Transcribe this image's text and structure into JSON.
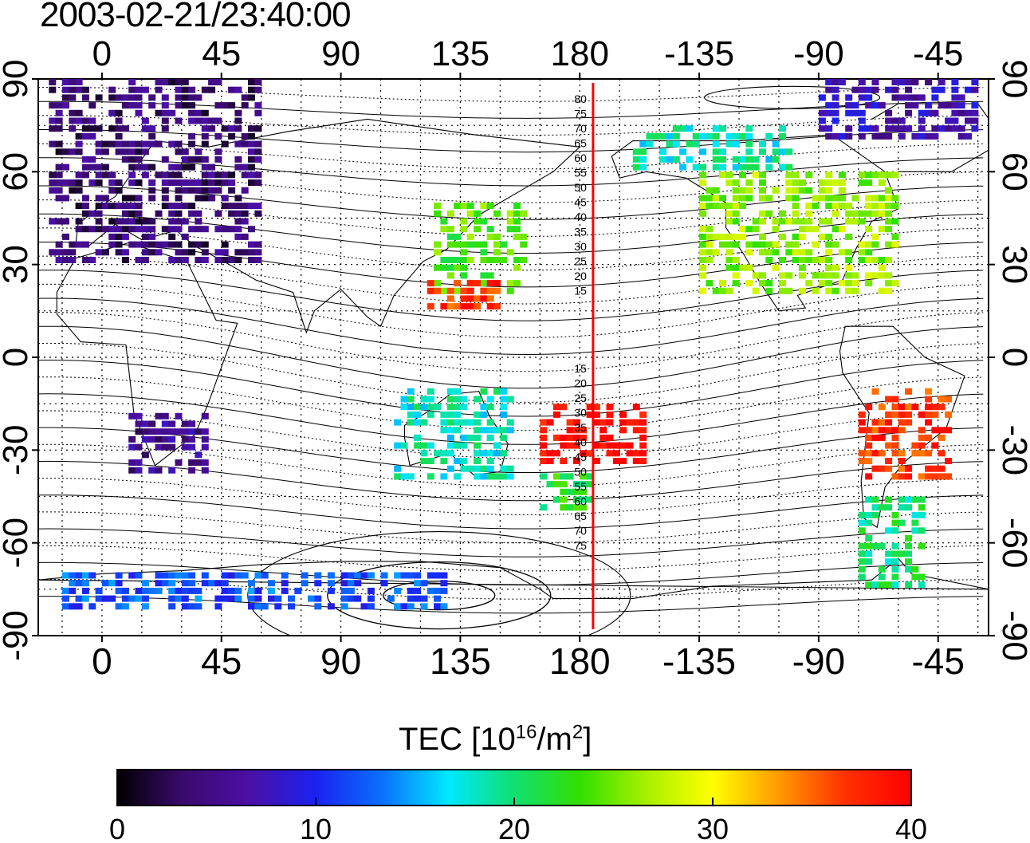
{
  "title": "2003-02-21/23:40:00",
  "map": {
    "top_lon_ticks": [
      "0",
      "45",
      "90",
      "135",
      "180",
      "-135",
      "-90",
      "-45"
    ],
    "bottom_lon_ticks": [
      "0",
      "45",
      "90",
      "135",
      "180",
      "-135",
      "-90",
      "-45"
    ],
    "lat_ticks": [
      "90",
      "60",
      "30",
      "0",
      "-30",
      "-60",
      "-90"
    ],
    "lon_values": [
      0,
      45,
      90,
      135,
      180,
      225,
      270,
      315
    ],
    "lat_values": [
      90,
      60,
      30,
      0,
      -30,
      -60,
      -90
    ],
    "lon_range": [
      -24,
      334
    ],
    "lat_range": [
      -90,
      90
    ],
    "terminator_lon": 185,
    "terminator_color": "#ff0000",
    "contour_labels_north": [
      "80",
      "75",
      "70",
      "65",
      "60",
      "55",
      "50",
      "45",
      "40",
      "35",
      "30",
      "25",
      "20",
      "15"
    ],
    "contour_labels_south": [
      "15",
      "20",
      "25",
      "30",
      "35",
      "40",
      "45",
      "50",
      "55",
      "60",
      "65",
      "70",
      "75"
    ]
  },
  "colorbar": {
    "label_main": "TEC  [10",
    "label_sup1": "16",
    "label_mid": "/m",
    "label_sup2": "2",
    "label_end": "]",
    "ticks": [
      "0",
      "10",
      "20",
      "30",
      "40"
    ],
    "min": 0,
    "max": 40,
    "stops": [
      "#000000",
      "#3a0a6e",
      "#4b0fa6",
      "#1a22f0",
      "#0a70ff",
      "#00e8ff",
      "#10e070",
      "#33e000",
      "#a8f000",
      "#ffff00",
      "#ff9a00",
      "#ff3000",
      "#ff0000"
    ]
  },
  "chart_data": {
    "type": "heatmap",
    "title": "2003-02-21/23:40:00",
    "value_label": "TEC [10^16/m^2]",
    "value_range": [
      0,
      40
    ],
    "x_axis": "longitude",
    "y_axis": "latitude",
    "xlim": [
      -24,
      334
    ],
    "ylim": [
      -90,
      90
    ],
    "regions": [
      {
        "lon": [
          -20,
          60
        ],
        "lat": [
          30,
          88
        ],
        "tec": 4
      },
      {
        "lon": [
          125,
          160
        ],
        "lat": [
          20,
          50
        ],
        "tec": 24
      },
      {
        "lon": [
          120,
          150
        ],
        "lat": [
          15,
          25
        ],
        "tec": 37
      },
      {
        "lon": [
          225,
          300
        ],
        "lat": [
          20,
          60
        ],
        "tec": 26
      },
      {
        "lon": [
          200,
          260
        ],
        "lat": [
          60,
          75
        ],
        "tec": 18
      },
      {
        "lon": [
          165,
          205
        ],
        "lat": [
          -35,
          -15
        ],
        "tec": 39
      },
      {
        "lon": [
          110,
          155
        ],
        "lat": [
          -40,
          -12
        ],
        "tec": 18
      },
      {
        "lon": [
          165,
          185
        ],
        "lat": [
          -50,
          -38
        ],
        "tec": 22
      },
      {
        "lon": [
          285,
          320
        ],
        "lat": [
          -40,
          -10
        ],
        "tec": 37
      },
      {
        "lon": [
          285,
          310
        ],
        "lat": [
          -75,
          -45
        ],
        "tec": 20
      },
      {
        "lon": [
          10,
          40
        ],
        "lat": [
          -38,
          -20
        ],
        "tec": 5
      },
      {
        "lon": [
          -15,
          130
        ],
        "lat": [
          -82,
          -70
        ],
        "tec": 12
      },
      {
        "lon": [
          270,
          330
        ],
        "lat": [
          70,
          88
        ],
        "tec": 7
      }
    ]
  }
}
